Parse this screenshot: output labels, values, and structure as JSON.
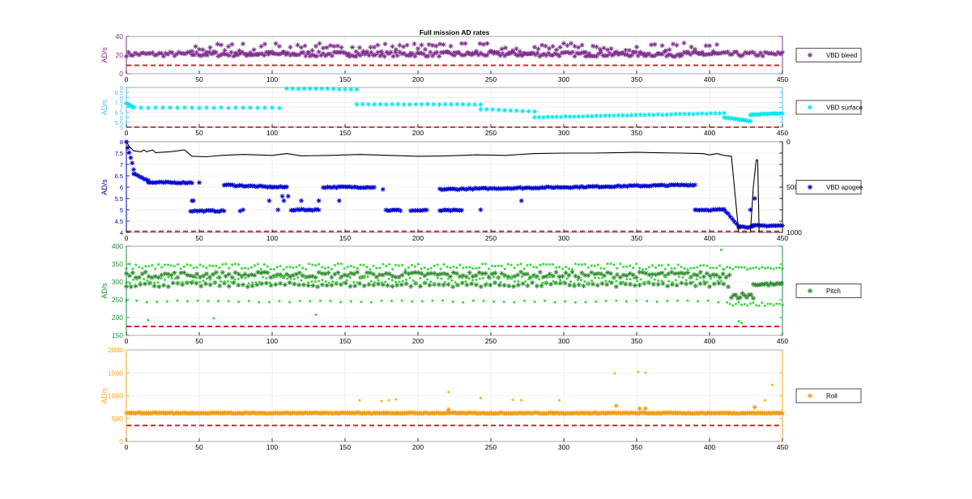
{
  "figure": {
    "title": "Full mission AD rates"
  },
  "chart_data": [
    {
      "type": "scatter",
      "id": "bleed",
      "title": "Full mission AD rates",
      "ylabel": "AD/s",
      "ylim": [
        0,
        40
      ],
      "yticks": [
        0,
        20,
        40
      ],
      "xlim": [
        0,
        450
      ],
      "xticks": [
        0,
        50,
        100,
        150,
        200,
        250,
        300,
        350,
        400,
        450
      ],
      "grid": true,
      "axis_color": "#7E2F8E",
      "legend": {
        "label": "VBD bleed",
        "position": "right"
      },
      "threshold": {
        "value": 9,
        "color": "#D62728",
        "style": "dashed"
      },
      "series": [
        {
          "name": "VBD bleed",
          "marker": "*",
          "color": "#7E2F8E",
          "bands": [
            {
              "x": [
                0,
                450
              ],
              "base": 21,
              "spread": 2.5,
              "step": 1.5
            },
            {
              "x": [
                45,
                405
              ],
              "base": 27,
              "spread": 6,
              "step": 2.5
            }
          ]
        }
      ]
    },
    {
      "type": "scatter",
      "id": "surface",
      "ylabel": "AD/s",
      "ylim": [
        5,
        9
      ],
      "yticks": [
        5,
        5.5,
        6,
        6.5,
        7,
        7.5,
        8,
        8.5,
        9
      ],
      "xlim": [
        0,
        450
      ],
      "xticks": [
        0,
        50,
        100,
        150,
        200,
        250,
        300,
        350,
        400,
        450
      ],
      "grid": true,
      "axis_color": "#4DBEEE",
      "legend": {
        "label": "VBD surface",
        "position": "right"
      },
      "threshold": {
        "value": 5,
        "color": "#D62728",
        "style": "dashed"
      },
      "series": [
        {
          "name": "VBD surface",
          "marker": "*",
          "color": "#00E5EE",
          "segments": [
            {
              "x": [
                0,
                5
              ],
              "y": [
                7.4,
                7.0
              ],
              "step": 1
            },
            {
              "x": [
                5,
                105
              ],
              "y": [
                6.95,
                6.95
              ],
              "step": 5
            },
            {
              "x": [
                110,
                158
              ],
              "y": [
                8.9,
                8.8
              ],
              "step": 4
            },
            {
              "x": [
                158,
                243
              ],
              "y": [
                7.3,
                7.3
              ],
              "step": 4
            },
            {
              "x": [
                243,
                280
              ],
              "y": [
                6.8,
                6.6
              ],
              "step": 4
            },
            {
              "x": [
                280,
                410
              ],
              "y": [
                6.0,
                6.4
              ],
              "step": 3
            },
            {
              "x": [
                410,
                428
              ],
              "y": [
                6.0,
                5.6
              ],
              "step": 1.5
            },
            {
              "x": [
                428,
                450
              ],
              "y": [
                6.25,
                6.4
              ],
              "step": 1.5
            }
          ]
        }
      ]
    },
    {
      "type": "scatter",
      "id": "apogee",
      "ylabel": "AD/s",
      "ylim": [
        4,
        8
      ],
      "yticks": [
        4,
        4.5,
        5,
        5.5,
        6,
        6.5,
        7,
        7.5,
        8
      ],
      "y2lim": [
        0,
        1000
      ],
      "y2ticks": [
        0,
        500,
        1000
      ],
      "y2_reversed": true,
      "xlim": [
        0,
        450
      ],
      "xticks": [
        0,
        50,
        100,
        150,
        200,
        250,
        300,
        350,
        400,
        450
      ],
      "grid": true,
      "axis_color": "#0000A8",
      "legend": {
        "label": "VBD apogee",
        "position": "right"
      },
      "threshold": {
        "value": 4.05,
        "color": "#D62728",
        "style": "dashed"
      },
      "series": [
        {
          "name": "VBD apogee",
          "marker": "*",
          "color": "#0000CD",
          "segments": [
            {
              "x": [
                0,
                5
              ],
              "y": [
                8.0,
                6.8
              ],
              "step": 1
            },
            {
              "x": [
                5,
                15
              ],
              "y": [
                6.6,
                6.3
              ],
              "step": 1.5
            },
            {
              "x": [
                15,
                45
              ],
              "y": [
                6.2,
                6.2
              ],
              "step": 1.5
            },
            {
              "x": [
                44,
                67
              ],
              "y": [
                4.95,
                4.95
              ],
              "step": 1.5
            },
            {
              "x": [
                67,
                100
              ],
              "y": [
                6.1,
                6.0
              ],
              "step": 1.5
            },
            {
              "x": [
                100,
                110
              ],
              "y": [
                6.0,
                6.0
              ],
              "step": 1.5
            },
            {
              "x": [
                113,
                132
              ],
              "y": [
                5.0,
                5.0
              ],
              "step": 1.5
            },
            {
              "x": [
                135,
                170
              ],
              "y": [
                6.0,
                6.0
              ],
              "step": 1.5
            },
            {
              "x": [
                178,
                188
              ],
              "y": [
                4.98,
                4.98
              ],
              "step": 1.5
            },
            {
              "x": [
                195,
                206
              ],
              "y": [
                4.97,
                4.97
              ],
              "step": 1.5
            },
            {
              "x": [
                215,
                230
              ],
              "y": [
                4.97,
                4.97
              ],
              "step": 1.5
            },
            {
              "x": [
                215,
                390
              ],
              "y": [
                5.9,
                6.1
              ],
              "step": 1.5
            },
            {
              "x": [
                390,
                410
              ],
              "y": [
                5.0,
                5.0
              ],
              "step": 1.5
            },
            {
              "x": [
                410,
                420
              ],
              "y": [
                5.0,
                4.3
              ],
              "step": 1.5
            },
            {
              "x": [
                420,
                430
              ],
              "y": [
                4.25,
                4.25
              ],
              "step": 1.5
            },
            {
              "x": [
                430,
                450
              ],
              "y": [
                4.3,
                4.3
              ],
              "step": 1.5
            }
          ],
          "points": [
            [
              45,
              5.4
            ],
            [
              46,
              5.4
            ],
            [
              50,
              6.2
            ],
            [
              78,
              4.95
            ],
            [
              80,
              5.0
            ],
            [
              98,
              5.4
            ],
            [
              104,
              5.0
            ],
            [
              107,
              5.6
            ],
            [
              108,
              5.4
            ],
            [
              111,
              5.6
            ],
            [
              120,
              5.4
            ],
            [
              132,
              5.4
            ],
            [
              146,
              5.4
            ],
            [
              176,
              5.9
            ],
            [
              243,
              5.0
            ],
            [
              271,
              5.4
            ],
            [
              428,
              5.0
            ],
            [
              431,
              5.5
            ]
          ]
        },
        {
          "name": "",
          "type": "line",
          "axis": "right",
          "color": "#000000",
          "points": [
            [
              0,
              0
            ],
            [
              2,
              50
            ],
            [
              5,
              100
            ],
            [
              10,
              110
            ],
            [
              12,
              90
            ],
            [
              14,
              110
            ],
            [
              18,
              90
            ],
            [
              20,
              120
            ],
            [
              30,
              110
            ],
            [
              40,
              90
            ],
            [
              45,
              160
            ],
            [
              55,
              165
            ],
            [
              65,
              150
            ],
            [
              80,
              140
            ],
            [
              100,
              150
            ],
            [
              110,
              130
            ],
            [
              120,
              155
            ],
            [
              140,
              150
            ],
            [
              160,
              140
            ],
            [
              180,
              150
            ],
            [
              200,
              160
            ],
            [
              220,
              155
            ],
            [
              240,
              145
            ],
            [
              260,
              150
            ],
            [
              280,
              130
            ],
            [
              300,
              125
            ],
            [
              320,
              125
            ],
            [
              340,
              120
            ],
            [
              350,
              115
            ],
            [
              360,
              120
            ],
            [
              380,
              125
            ],
            [
              395,
              130
            ],
            [
              400,
              145
            ],
            [
              405,
              130
            ],
            [
              410,
              150
            ],
            [
              415,
              160
            ],
            [
              420,
              1000
            ],
            [
              428,
              1000
            ],
            [
              430,
              500
            ],
            [
              432,
              200
            ],
            [
              433,
              200
            ],
            [
              434,
              1000
            ],
            [
              450,
              1000
            ]
          ]
        }
      ]
    },
    {
      "type": "scatter",
      "id": "pitch",
      "ylabel": "AD/s",
      "ylim": [
        150,
        400
      ],
      "yticks": [
        150,
        200,
        250,
        300,
        350,
        400
      ],
      "xlim": [
        0,
        450
      ],
      "xticks": [
        0,
        50,
        100,
        150,
        200,
        250,
        300,
        350,
        400,
        450
      ],
      "grid": true,
      "axis_color": "#1B8E3A",
      "legend": {
        "label": "Pitch",
        "position": "right"
      },
      "threshold": {
        "value": 175,
        "color": "#D62728",
        "style": "dashed"
      },
      "series": [
        {
          "name": "Pitch",
          "marker": "*",
          "color": "#2E8B2E",
          "bands": [
            {
              "x": [
                0,
                415
              ],
              "base": 320,
              "spread": 8,
              "step": 2.2
            },
            {
              "x": [
                0,
                415
              ],
              "base": 292,
              "spread": 6,
              "step": 3.2
            },
            {
              "x": [
                415,
                430
              ],
              "base": 262,
              "spread": 8,
              "step": 1.5
            },
            {
              "x": [
                430,
                450
              ],
              "base": 293,
              "spread": 4,
              "step": 1.5
            }
          ]
        },
        {
          "name": "",
          "marker": ".",
          "color": "#33DD33",
          "bands": [
            {
              "x": [
                0,
                410
              ],
              "base": 343,
              "spread": 8,
              "step": 2.2
            },
            {
              "x": [
                0,
                410
              ],
              "base": 305,
              "spread": 10,
              "step": 2.4
            },
            {
              "x": [
                0,
                410
              ],
              "base": 245,
              "spread": 3,
              "step": 7
            },
            {
              "x": [
                410,
                450
              ],
              "base": 338,
              "spread": 4,
              "step": 2
            },
            {
              "x": [
                412,
                450
              ],
              "base": 238,
              "spread": 5,
              "step": 2
            }
          ],
          "points": [
            [
              15,
              193
            ],
            [
              60,
              198
            ],
            [
              130,
              208
            ],
            [
              408,
              390
            ],
            [
              420,
              190
            ],
            [
              422,
              185
            ]
          ]
        }
      ]
    },
    {
      "type": "scatter",
      "id": "roll",
      "ylabel": "AD/s",
      "ylim": [
        0,
        2000
      ],
      "yticks": [
        0,
        500,
        1000,
        1500,
        2000
      ],
      "xlim": [
        0,
        450
      ],
      "xticks": [
        0,
        50,
        100,
        150,
        200,
        250,
        300,
        350,
        400,
        450
      ],
      "grid": true,
      "axis_color": "#F7A21B",
      "legend": {
        "label": "Roll",
        "position": "right"
      },
      "threshold": {
        "value": 350,
        "color": "#D62728",
        "style": "dashed"
      },
      "series": [
        {
          "name": "Roll",
          "marker": "*",
          "color": "#F39C12",
          "bands": [
            {
              "x": [
                0,
                450
              ],
              "base": 620,
              "spread": 12,
              "step": 0.9
            }
          ],
          "points": [
            [
              221,
              700
            ],
            [
              336,
              780
            ],
            [
              352,
              720
            ],
            [
              356,
              720
            ],
            [
              431,
              750
            ]
          ]
        },
        {
          "name": "",
          "marker": ".",
          "color": "#FFB000",
          "points": [
            [
              160,
              900
            ],
            [
              175,
              880
            ],
            [
              180,
              900
            ],
            [
              185,
              920
            ],
            [
              221,
              1080
            ],
            [
              243,
              950
            ],
            [
              265,
              910
            ],
            [
              271,
              900
            ],
            [
              297,
              900
            ],
            [
              335,
              1490
            ],
            [
              351,
              1520
            ],
            [
              356,
              1500
            ],
            [
              438,
              900
            ],
            [
              443,
              1240
            ]
          ]
        }
      ]
    }
  ]
}
